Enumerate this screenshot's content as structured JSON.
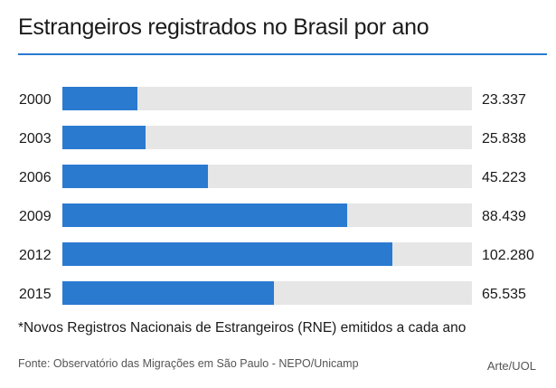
{
  "header": {
    "title": "Estrangeiros registrados no Brasil por ano"
  },
  "chart_data": {
    "type": "bar",
    "orientation": "horizontal",
    "categories": [
      "2000",
      "2003",
      "2006",
      "2009",
      "2012",
      "2015"
    ],
    "values": [
      23337,
      25838,
      45223,
      88439,
      102280,
      65535
    ],
    "value_labels": [
      "23.337",
      "25.838",
      "45.223",
      "88.439",
      "102.280",
      "65.535"
    ],
    "xlim": [
      0,
      127000
    ],
    "grid": false,
    "legend": "none",
    "colors": {
      "bar": "#2a7ad0",
      "track": "#e6e6e6",
      "rule": "#2a7ad0"
    }
  },
  "footer": {
    "note": "*Novos Registros Nacionais de Estrangeiros (RNE) emitidos a cada ano",
    "source": "Fonte: Observatório das Migrações em São Paulo - NEPO/Unicamp",
    "credit": "Arte/UOL"
  }
}
